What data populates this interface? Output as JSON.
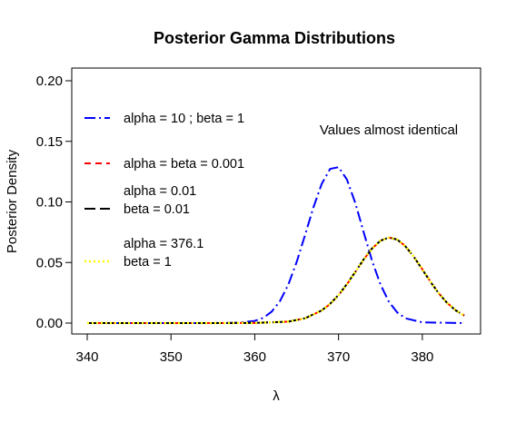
{
  "chart_data": {
    "type": "line",
    "title": "Posterior Gamma Distributions",
    "xlabel": "λ",
    "ylabel": "Posterior Density",
    "xlim": [
      340,
      385
    ],
    "ylim": [
      0,
      0.2
    ],
    "x_ticks": [
      "340",
      "350",
      "360",
      "370",
      "380"
    ],
    "y_ticks": [
      "0.00",
      "0.05",
      "0.10",
      "0.15",
      "0.20"
    ],
    "grid": false,
    "legend_position": "left",
    "annotation": "Values almost identical",
    "series": [
      {
        "legend": [
          "alpha = 10 ; beta = 1"
        ],
        "color": "#0000ff",
        "dash": "longdash-dot",
        "x": [
          340,
          345,
          350,
          355,
          358,
          360,
          361,
          362,
          363,
          364,
          365,
          366,
          367,
          368,
          369,
          370,
          371,
          372,
          373,
          374,
          375,
          376,
          377,
          378,
          380,
          385
        ],
        "y": [
          0,
          0,
          0,
          0,
          0.0003,
          0.0018,
          0.0043,
          0.0093,
          0.018,
          0.0317,
          0.0504,
          0.0726,
          0.0955,
          0.1151,
          0.1273,
          0.1287,
          0.1185,
          0.0991,
          0.075,
          0.0514,
          0.0319,
          0.0177,
          0.0088,
          0.0039,
          0.0006,
          0
        ]
      },
      {
        "legend": [
          "alpha = beta = 0.001"
        ],
        "color": "#ff0000",
        "dash": "dashed",
        "x": [
          340,
          345,
          350,
          355,
          360,
          364,
          366,
          368,
          369,
          370,
          371,
          372,
          373,
          374,
          375,
          376,
          377,
          378,
          379,
          380,
          381,
          382,
          383,
          384,
          385
        ],
        "y": [
          0,
          0,
          0,
          0,
          0.0001,
          0.0012,
          0.0039,
          0.0104,
          0.0158,
          0.023,
          0.032,
          0.0421,
          0.0524,
          0.0615,
          0.0679,
          0.0706,
          0.069,
          0.0634,
          0.0547,
          0.0444,
          0.0339,
          0.0243,
          0.0164,
          0.0105,
          0.0063
        ]
      },
      {
        "legend": [
          "alpha =  0.01",
          " beta = 0.01"
        ],
        "color": "#000000",
        "dash": "longdash",
        "x": [
          340,
          345,
          350,
          355,
          360,
          364,
          366,
          368,
          369,
          370,
          371,
          372,
          373,
          374,
          375,
          376,
          377,
          378,
          379,
          380,
          381,
          382,
          383,
          384,
          385
        ],
        "y": [
          0,
          0,
          0,
          0,
          0.0001,
          0.0012,
          0.004,
          0.0105,
          0.016,
          0.0232,
          0.0322,
          0.0423,
          0.0526,
          0.0617,
          0.068,
          0.0706,
          0.0689,
          0.0632,
          0.0545,
          0.0442,
          0.0337,
          0.0242,
          0.0163,
          0.0104,
          0.0062
        ]
      },
      {
        "legend": [
          "alpha =  376.1",
          " beta = 1"
        ],
        "color": "#ffff00",
        "dash": "dotted",
        "x": [
          340,
          345,
          350,
          355,
          360,
          364,
          366,
          368,
          369,
          370,
          371,
          372,
          373,
          374,
          375,
          376,
          377,
          378,
          379,
          380,
          381,
          382,
          383,
          384,
          385
        ],
        "y": [
          0,
          0,
          0,
          0,
          0.0001,
          0.0012,
          0.0039,
          0.0104,
          0.0158,
          0.023,
          0.032,
          0.0421,
          0.0524,
          0.0615,
          0.0679,
          0.0706,
          0.069,
          0.0634,
          0.0547,
          0.0444,
          0.0339,
          0.0243,
          0.0164,
          0.0105,
          0.0063
        ]
      }
    ]
  }
}
